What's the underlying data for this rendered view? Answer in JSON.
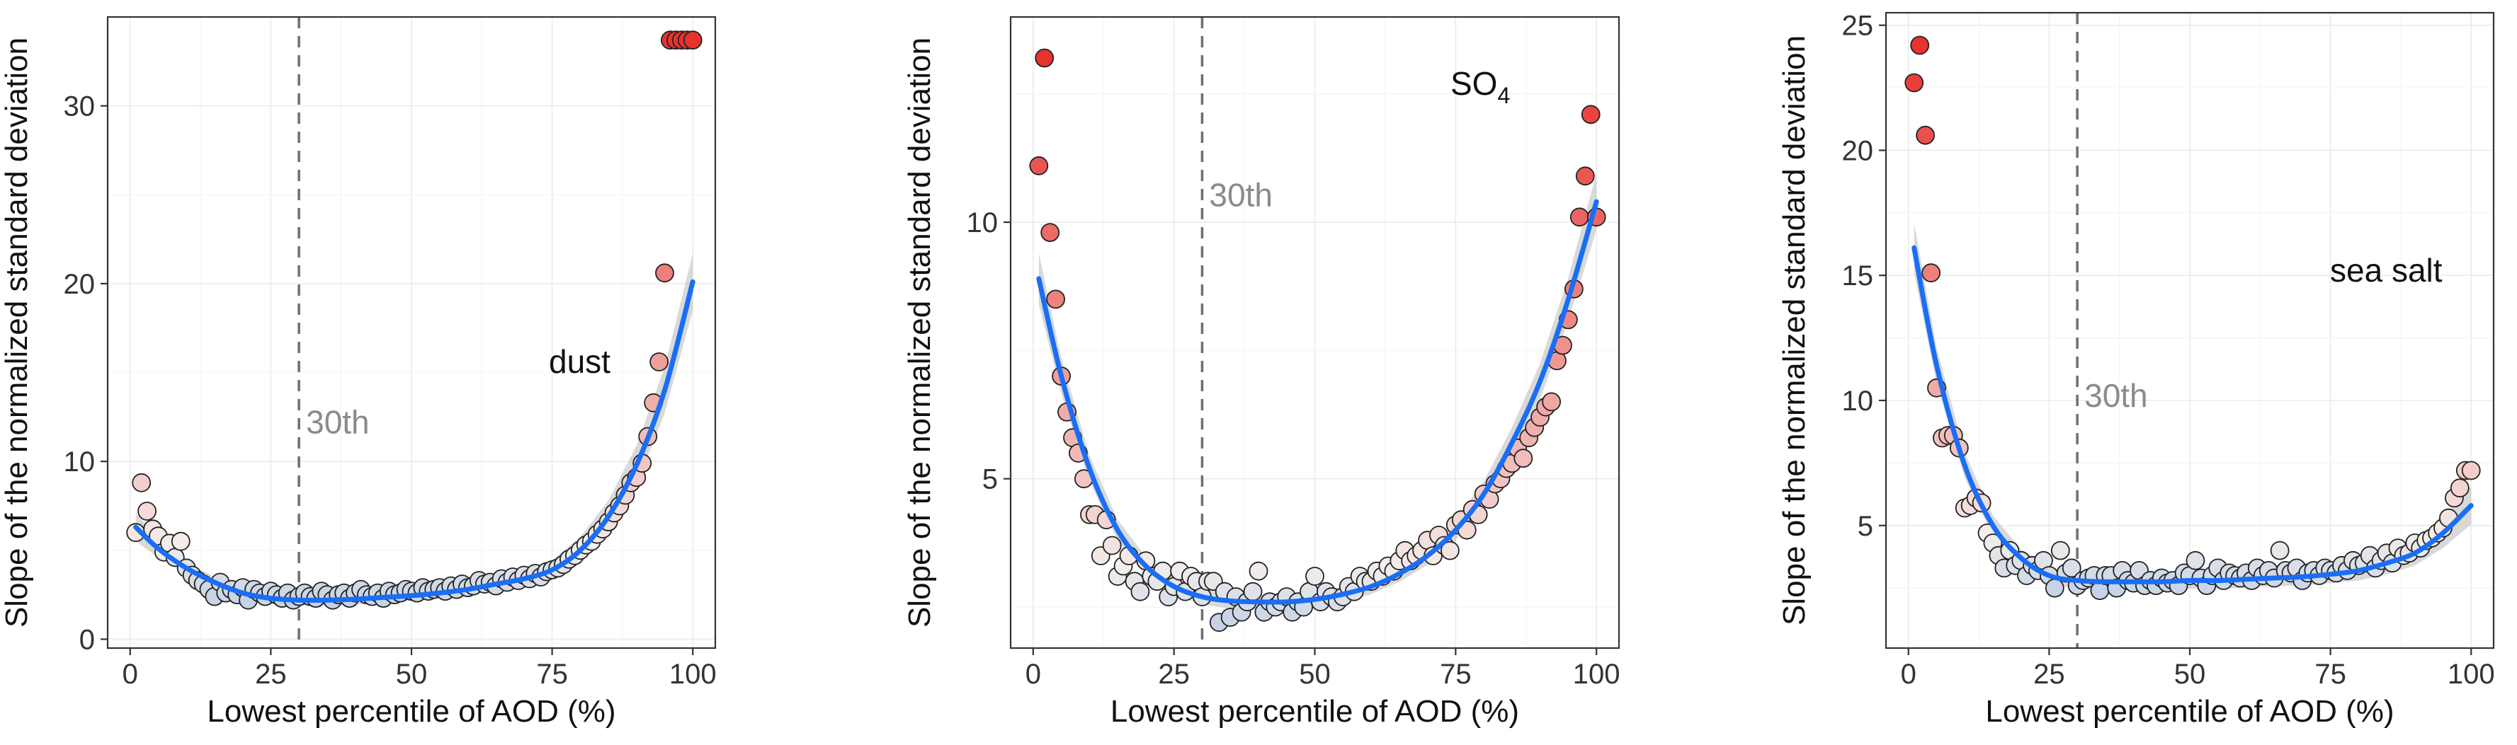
{
  "colors": {
    "fit_line": "#1a6ef5",
    "band": "#b9b9b9",
    "point_low": "#c6d3e6",
    "point_mid": "#f4efec",
    "point_high": "#e8322e",
    "reference_line": "#6e6e6e"
  },
  "chart_data": [
    {
      "type": "scatter",
      "species": "dust",
      "xlabel": "Lowest percentile of AOD (%)",
      "ylabel": "Slope of the normalized standard deviation",
      "xlim": [
        -4,
        104
      ],
      "ylim": [
        -0.5,
        35.0
      ],
      "xticks": [
        0,
        25,
        50,
        75,
        100
      ],
      "yticks": [
        0,
        10,
        20,
        30
      ],
      "grid": true,
      "reference_line": {
        "x": 30,
        "label": "30th"
      },
      "series": [
        {
          "name": "points",
          "x": [
            1,
            2,
            3,
            4,
            5,
            6,
            7,
            8,
            9,
            10,
            11,
            12,
            13,
            14,
            15,
            16,
            17,
            18,
            19,
            20,
            21,
            22,
            23,
            24,
            25,
            26,
            27,
            28,
            29,
            30,
            31,
            32,
            33,
            34,
            35,
            36,
            37,
            38,
            39,
            40,
            41,
            42,
            43,
            44,
            45,
            46,
            47,
            48,
            49,
            50,
            51,
            52,
            53,
            54,
            55,
            56,
            57,
            58,
            59,
            60,
            61,
            62,
            63,
            64,
            65,
            66,
            67,
            68,
            69,
            70,
            71,
            72,
            73,
            74,
            75,
            76,
            77,
            78,
            79,
            80,
            81,
            82,
            83,
            84,
            85,
            86,
            87,
            88,
            89,
            90,
            91,
            92,
            93,
            94,
            95,
            96,
            97,
            98,
            99,
            100
          ],
          "y": [
            6.0,
            8.8,
            7.2,
            6.2,
            5.8,
            4.9,
            5.4,
            4.6,
            5.5,
            4.0,
            3.6,
            3.3,
            3.1,
            2.8,
            2.4,
            3.2,
            2.6,
            2.8,
            2.5,
            2.9,
            2.2,
            2.8,
            2.6,
            2.4,
            2.7,
            2.5,
            2.3,
            2.6,
            2.2,
            2.4,
            2.6,
            2.4,
            2.3,
            2.7,
            2.5,
            2.2,
            2.5,
            2.6,
            2.3,
            2.6,
            2.8,
            2.5,
            2.4,
            2.6,
            2.3,
            2.7,
            2.5,
            2.6,
            2.8,
            2.7,
            2.6,
            2.9,
            2.7,
            2.8,
            2.9,
            2.7,
            3.0,
            2.8,
            3.1,
            2.9,
            3.0,
            3.3,
            3.1,
            3.2,
            3.0,
            3.4,
            3.2,
            3.5,
            3.3,
            3.6,
            3.4,
            3.7,
            3.5,
            3.8,
            3.9,
            4.0,
            4.2,
            4.5,
            4.7,
            5.0,
            5.3,
            5.5,
            5.9,
            6.2,
            6.6,
            7.1,
            7.5,
            8.1,
            8.8,
            9.1,
            9.9,
            11.4,
            13.3,
            15.6,
            20.6,
            33.7,
            33.7,
            33.7,
            33.7,
            33.7
          ]
        },
        {
          "name": "fit",
          "x": [
            1,
            5,
            10,
            15,
            20,
            25,
            30,
            35,
            40,
            45,
            50,
            55,
            60,
            65,
            70,
            75,
            80,
            85,
            90,
            95,
            100
          ],
          "y": [
            6.3,
            5.1,
            4.0,
            3.2,
            2.6,
            2.3,
            2.2,
            2.2,
            2.25,
            2.35,
            2.45,
            2.6,
            2.8,
            3.1,
            3.4,
            3.9,
            5.0,
            6.9,
            9.8,
            14.0,
            20.1
          ],
          "band": [
            0.8,
            0.5,
            0.35,
            0.3,
            0.3,
            0.3,
            0.3,
            0.3,
            0.3,
            0.3,
            0.3,
            0.3,
            0.3,
            0.35,
            0.45,
            0.55,
            0.75,
            0.9,
            1.1,
            1.3,
            1.6
          ]
        }
      ]
    },
    {
      "type": "scatter",
      "species": "SO",
      "species_subscript": "4",
      "xlabel": "Lowest percentile of AOD (%)",
      "ylabel": "Slope of the normalized standard deviation",
      "xlim": [
        -4,
        104
      ],
      "ylim": [
        1.7,
        14.0
      ],
      "xticks": [
        0,
        25,
        50,
        75,
        100
      ],
      "yticks": [
        5,
        10
      ],
      "grid": true,
      "reference_line": {
        "x": 30,
        "label": "30th"
      },
      "series": [
        {
          "name": "points",
          "x": [
            1,
            2,
            3,
            4,
            5,
            6,
            7,
            8,
            9,
            10,
            11,
            12,
            13,
            14,
            15,
            16,
            17,
            18,
            19,
            20,
            21,
            22,
            23,
            24,
            25,
            26,
            27,
            28,
            29,
            30,
            31,
            32,
            33,
            34,
            35,
            36,
            37,
            38,
            39,
            40,
            41,
            42,
            43,
            44,
            45,
            46,
            47,
            48,
            49,
            50,
            51,
            52,
            53,
            54,
            55,
            56,
            57,
            58,
            59,
            60,
            61,
            62,
            63,
            64,
            65,
            66,
            67,
            68,
            69,
            70,
            71,
            72,
            73,
            74,
            75,
            76,
            77,
            78,
            79,
            80,
            81,
            82,
            83,
            84,
            85,
            86,
            87,
            88,
            89,
            90,
            91,
            92,
            93,
            94,
            95,
            96,
            97,
            98,
            99,
            100
          ],
          "y": [
            11.1,
            13.2,
            9.8,
            8.5,
            7.0,
            6.3,
            5.8,
            5.5,
            5.0,
            4.3,
            4.3,
            3.5,
            4.2,
            3.7,
            3.1,
            3.3,
            3.5,
            3.0,
            2.8,
            3.4,
            3.1,
            3.0,
            3.2,
            2.7,
            2.9,
            3.2,
            2.8,
            3.1,
            3.0,
            2.7,
            3.0,
            3.0,
            2.2,
            2.8,
            2.3,
            2.7,
            2.4,
            2.6,
            2.8,
            3.2,
            2.4,
            2.6,
            2.5,
            2.6,
            2.7,
            2.4,
            2.6,
            2.5,
            2.8,
            3.1,
            2.6,
            2.8,
            2.7,
            2.6,
            2.7,
            2.9,
            2.8,
            3.1,
            3.0,
            3.0,
            3.2,
            3.1,
            3.3,
            3.2,
            3.4,
            3.6,
            3.4,
            3.5,
            3.6,
            3.8,
            3.5,
            3.9,
            3.7,
            3.6,
            4.1,
            4.2,
            4.0,
            4.4,
            4.3,
            4.7,
            4.6,
            4.9,
            5.0,
            5.2,
            5.3,
            5.6,
            5.4,
            5.8,
            6.0,
            6.2,
            6.4,
            6.5,
            7.3,
            7.6,
            8.1,
            8.7,
            10.1,
            10.9,
            12.1,
            10.1
          ]
        },
        {
          "name": "fit",
          "x": [
            1,
            5,
            10,
            15,
            20,
            25,
            30,
            35,
            40,
            45,
            50,
            55,
            60,
            65,
            70,
            75,
            80,
            85,
            90,
            95,
            100
          ],
          "y": [
            8.9,
            7.0,
            5.2,
            4.0,
            3.3,
            2.9,
            2.7,
            2.62,
            2.6,
            2.6,
            2.65,
            2.75,
            2.9,
            3.15,
            3.5,
            4.0,
            4.7,
            5.7,
            6.9,
            8.5,
            10.4
          ],
          "band": [
            0.5,
            0.35,
            0.25,
            0.2,
            0.18,
            0.16,
            0.15,
            0.15,
            0.15,
            0.15,
            0.15,
            0.15,
            0.15,
            0.16,
            0.18,
            0.2,
            0.25,
            0.3,
            0.35,
            0.42,
            0.55
          ]
        }
      ]
    },
    {
      "type": "scatter",
      "species": "sea salt",
      "xlabel": "Lowest percentile of AOD (%)",
      "ylabel": "Slope of the normalized standard deviation",
      "xlim": [
        -4,
        104
      ],
      "ylim": [
        0.1,
        25.5
      ],
      "xticks": [
        0,
        25,
        50,
        75,
        100
      ],
      "yticks": [
        5,
        10,
        15,
        20,
        25
      ],
      "grid": true,
      "reference_line": {
        "x": 30,
        "label": "30th"
      },
      "series": [
        {
          "name": "points",
          "x": [
            1,
            2,
            3,
            4,
            5,
            6,
            7,
            8,
            9,
            10,
            11,
            12,
            13,
            14,
            15,
            16,
            17,
            18,
            19,
            20,
            21,
            22,
            23,
            24,
            25,
            26,
            27,
            28,
            29,
            30,
            31,
            32,
            33,
            34,
            35,
            36,
            37,
            38,
            39,
            40,
            41,
            42,
            43,
            44,
            45,
            46,
            47,
            48,
            49,
            50,
            51,
            52,
            53,
            54,
            55,
            56,
            57,
            58,
            59,
            60,
            61,
            62,
            63,
            64,
            65,
            66,
            67,
            68,
            69,
            70,
            71,
            72,
            73,
            74,
            75,
            76,
            77,
            78,
            79,
            80,
            81,
            82,
            83,
            84,
            85,
            86,
            87,
            88,
            89,
            90,
            91,
            92,
            93,
            94,
            95,
            96,
            97,
            98,
            99,
            100
          ],
          "y": [
            22.7,
            24.2,
            20.6,
            15.1,
            10.5,
            8.5,
            8.6,
            8.6,
            8.1,
            5.7,
            5.8,
            6.1,
            5.9,
            4.7,
            4.3,
            3.8,
            3.3,
            4.0,
            3.4,
            3.6,
            3.0,
            3.4,
            3.2,
            3.6,
            3.0,
            2.5,
            4.0,
            3.1,
            3.3,
            2.6,
            2.8,
            2.9,
            3.0,
            2.4,
            3.0,
            3.0,
            2.5,
            3.2,
            2.8,
            2.7,
            3.2,
            2.6,
            2.8,
            2.6,
            2.9,
            2.7,
            2.8,
            2.6,
            3.1,
            3.0,
            3.6,
            2.9,
            2.6,
            3.0,
            3.3,
            2.8,
            3.1,
            3.0,
            2.9,
            3.1,
            2.8,
            3.3,
            3.0,
            3.2,
            2.9,
            4.0,
            3.2,
            3.1,
            3.3,
            2.8,
            3.1,
            3.2,
            3.0,
            3.3,
            3.2,
            3.1,
            3.4,
            3.2,
            3.6,
            3.4,
            3.5,
            3.8,
            3.3,
            3.6,
            3.9,
            3.5,
            4.1,
            3.8,
            3.9,
            4.3,
            4.1,
            4.4,
            4.5,
            4.7,
            4.9,
            5.3,
            6.1,
            6.5,
            7.2,
            7.2
          ]
        },
        {
          "name": "fit",
          "x": [
            1,
            5,
            10,
            15,
            20,
            25,
            30,
            35,
            40,
            45,
            50,
            55,
            60,
            65,
            70,
            75,
            80,
            85,
            90,
            95,
            100
          ],
          "y": [
            16.1,
            11.4,
            7.4,
            5.0,
            3.7,
            3.0,
            2.8,
            2.75,
            2.75,
            2.75,
            2.8,
            2.8,
            2.85,
            2.9,
            2.95,
            3.05,
            3.2,
            3.5,
            3.9,
            4.7,
            5.8
          ],
          "band": [
            1.0,
            0.7,
            0.5,
            0.4,
            0.35,
            0.35,
            0.33,
            0.33,
            0.33,
            0.33,
            0.33,
            0.33,
            0.33,
            0.33,
            0.35,
            0.35,
            0.4,
            0.45,
            0.5,
            0.6,
            0.75
          ]
        }
      ]
    }
  ]
}
